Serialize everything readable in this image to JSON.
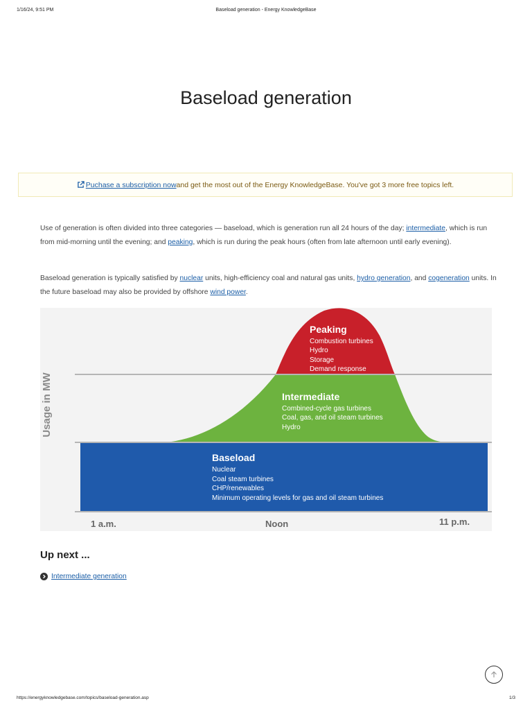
{
  "print_header": {
    "datetime": "1/16/24, 9:51 PM",
    "title": "Baseload generation - Energy KnowledgeBase"
  },
  "page": {
    "title": "Baseload generation"
  },
  "notice": {
    "link_text": "Puchase a subscription now",
    "text": " and get the most out of the Energy KnowledgeBase. You've got 3 more free topics left.",
    "icon": "external-link-icon"
  },
  "paragraph1": {
    "t1": "Use of generation is often divided into three categories — baseload, which is generation run all 24 hours of the day; ",
    "link_intermediate": "intermediate",
    "t2": ", which is run from mid-morning until the evening; and ",
    "link_peaking": "peaking",
    "t3": ", which is run during the peak hours (often from late afternoon until early evening)."
  },
  "paragraph2": {
    "t1": "Baseload generation is typically satisfied by ",
    "link_nuclear": "nuclear",
    "t2": " units, high-efficiency coal and natural gas units, ",
    "link_hydro": "hydro generation",
    "t3": ", and ",
    "link_cogeneration": "cogeneration",
    "t4": " units. In the future baseload may also be provided by offshore ",
    "link_wind": "wind power",
    "t5": "."
  },
  "figure": {
    "y_axis_label": "Usage in MW",
    "x_labels": [
      "1 a.m.",
      "Noon",
      "11 p.m."
    ],
    "colors": {
      "baseload": "#1f5aab",
      "intermediate": "#6db33f",
      "peaking": "#c8202a",
      "background": "#f3f3f3"
    },
    "peaking": {
      "title": "Peaking",
      "items": [
        "Combustion turbines",
        "Hydro",
        "Storage",
        "Demand response"
      ]
    },
    "intermediate": {
      "title": "Intermediate",
      "items": [
        "Combined-cycle gas turbines",
        "Coal, gas, and oil steam turbines",
        "Hydro"
      ]
    },
    "baseload": {
      "title": "Baseload",
      "items": [
        "Nuclear",
        "Coal steam turbines",
        "CHP/renewables",
        "Minimum operating levels for gas and oil steam turbines"
      ]
    }
  },
  "up_next": {
    "heading": "Up next ...",
    "item_label": "Intermediate generation",
    "item_icon": "chevron-right-circle-icon"
  },
  "scroll_top": {
    "icon": "arrow-up-icon"
  },
  "print_footer": {
    "url": "https://energyknowledgebase.com/topics/baseload-generation.asp",
    "page_number": "1/3"
  }
}
